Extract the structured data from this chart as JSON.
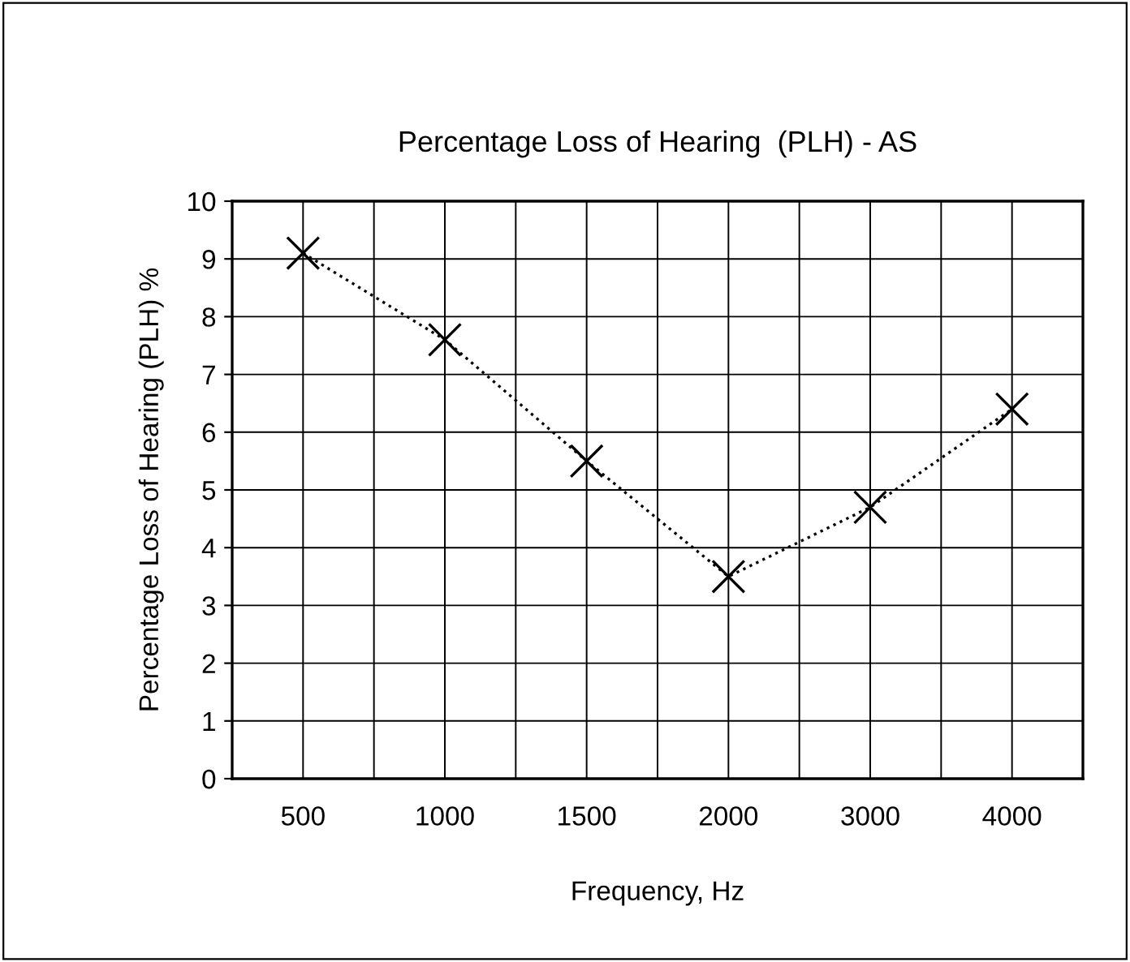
{
  "chart_data": {
    "type": "line",
    "title": "Percentage Loss of Hearing  (PLH) - AS",
    "xlabel": "Frequency, Hz",
    "ylabel": "Percentage Loss of Hearing (PLH) %",
    "categories": [
      "500",
      "1000",
      "1500",
      "2000",
      "3000",
      "4000"
    ],
    "series": [
      {
        "color": "#000000",
        "values": [
          9.1,
          7.6,
          5.5,
          3.5,
          4.7,
          6.4
        ]
      }
    ],
    "ylim": [
      0,
      10
    ],
    "yticks": [
      0,
      1,
      2,
      3,
      4,
      5,
      6,
      7,
      8,
      9,
      10
    ],
    "grid": true,
    "legend": false,
    "marker": "cross",
    "line_style": "dotted"
  }
}
